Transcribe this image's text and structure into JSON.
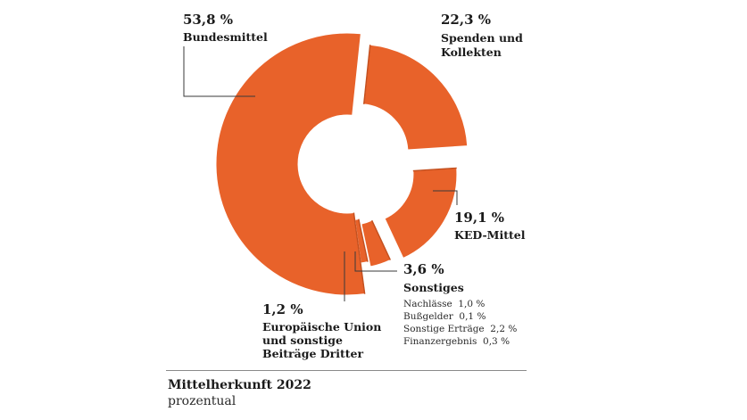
{
  "chart_data": {
    "type": "pie",
    "variant": "exploded-donut",
    "title": "Mittelherkunft 2022",
    "subtitle": "prozentual",
    "color": "#E8622A",
    "slices": [
      {
        "label": "Bundesmittel",
        "value": 53.8,
        "value_label": "53,8 %"
      },
      {
        "label": "Spenden und Kollekten",
        "label_lines": [
          "Spenden und",
          "Kollekten"
        ],
        "value": 22.3,
        "value_label": "22,3 %"
      },
      {
        "label": "KED-Mittel",
        "value": 19.1,
        "value_label": "19,1 %"
      },
      {
        "label": "Sonstiges",
        "value": 3.6,
        "value_label": "3,6 %",
        "details": [
          "Nachlässe  1,0 %",
          "Bußgelder  0,1 %",
          "Sonstige Erträge  2,2 %",
          "Finanzergebnis  0,3 %"
        ]
      },
      {
        "label": "Europäische Union und sonstige Beiträge Dritter",
        "label_lines": [
          "Europäische Union",
          "und sonstige",
          "Beiträge Dritter"
        ],
        "value": 1.2,
        "value_label": "1,2 %"
      }
    ]
  }
}
